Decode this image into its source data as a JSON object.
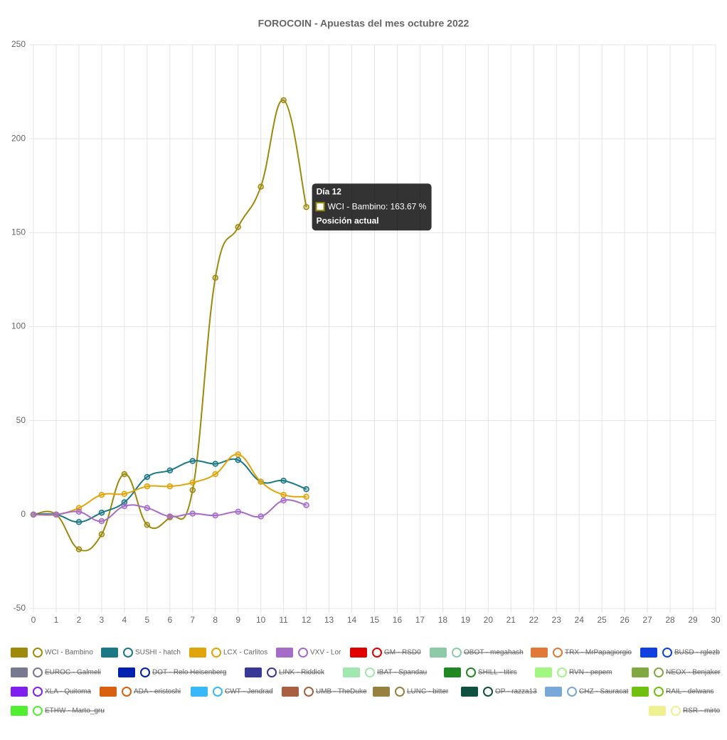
{
  "chart_data": {
    "type": "line",
    "title": "FOROCOIN - Apuestas del mes octubre 2022",
    "x": [
      0,
      1,
      2,
      3,
      4,
      5,
      6,
      7,
      8,
      9,
      10,
      11,
      12
    ],
    "xlim": [
      0,
      30
    ],
    "xticks": [
      0,
      1,
      2,
      3,
      4,
      5,
      6,
      7,
      8,
      9,
      10,
      11,
      12,
      13,
      14,
      15,
      16,
      17,
      18,
      19,
      20,
      21,
      22,
      23,
      24,
      25,
      26,
      27,
      28,
      29,
      30
    ],
    "ylim": [
      -50,
      250
    ],
    "yticks": [
      -50,
      0,
      50,
      100,
      150,
      200,
      250
    ],
    "grid": true,
    "series": [
      {
        "name": "WCI - Bambino",
        "color": "#9d8a0c",
        "values": [
          0,
          0,
          -18.5,
          -10.5,
          21.5,
          -5.5,
          -1.5,
          13,
          126,
          153,
          174.5,
          220.5,
          163.67
        ]
      },
      {
        "name": "SUSHI - hatch",
        "color": "#1b7885",
        "values": [
          0,
          0,
          -4,
          1,
          6.5,
          20,
          23.5,
          28.5,
          27,
          29,
          17.5,
          18,
          13.5
        ]
      },
      {
        "name": "LCX - Carlitos",
        "color": "#e0a50a",
        "values": [
          0,
          0,
          3.5,
          10.5,
          11,
          15,
          15,
          17,
          21.5,
          32,
          17.5,
          10.5,
          9.5
        ]
      },
      {
        "name": "VXV - Lor",
        "color": "#a56cc8",
        "values": [
          0,
          0,
          1.5,
          -3.5,
          4.5,
          3.5,
          -1,
          0.5,
          -0.5,
          1.5,
          -1,
          7.5,
          5
        ]
      }
    ],
    "hidden_series": [
      {
        "name": "GM - RSD0",
        "color": "#e00000"
      },
      {
        "name": "OBOT - megahash",
        "color": "#8ccaa8"
      },
      {
        "name": "TRX - MrPapagiorgio",
        "color": "#e07838"
      },
      {
        "name": "BUSD - rglezb",
        "color": "#1040e0"
      },
      {
        "name": "EUROC - Galmeli",
        "color": "#787890"
      },
      {
        "name": "DOT - Relo Heisenberg",
        "color": "#0020b0"
      },
      {
        "name": "LINK - Riddick",
        "color": "#383898"
      },
      {
        "name": "IBAT - Spandau",
        "color": "#a0e8b0"
      },
      {
        "name": "SHILL - titirs",
        "color": "#208820"
      },
      {
        "name": "RVN - pepem",
        "color": "#a0f880"
      },
      {
        "name": "NEOX - Benjaker",
        "color": "#80a840"
      },
      {
        "name": "XLA - Quitoma",
        "color": "#8020f0"
      },
      {
        "name": "ADA - eristoshi",
        "color": "#d86010"
      },
      {
        "name": "CWT - Jendrad",
        "color": "#38b8f8"
      },
      {
        "name": "UMB - TheDuke",
        "color": "#a86040"
      },
      {
        "name": "LUNC - bitter",
        "color": "#988040"
      },
      {
        "name": "OP - razza13",
        "color": "#105040"
      },
      {
        "name": "CHZ - Sauracat",
        "color": "#78a8d8"
      },
      {
        "name": "RAIL - delwans",
        "color": "#70c010"
      },
      {
        "name": "ETHW - Marto_gru",
        "color": "#50f030"
      },
      {
        "name": "RSR - mirto",
        "color": "#f0f090"
      }
    ],
    "tooltip": {
      "title": "Día 12",
      "label": "WCI - Bambino: 163.67 %",
      "footer": "Posición actual"
    }
  }
}
